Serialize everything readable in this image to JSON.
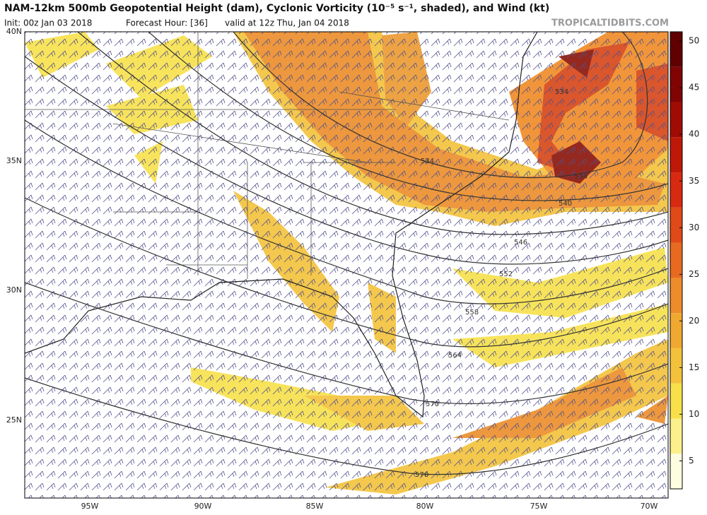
{
  "header": {
    "title": "NAM-12km 500mb Geopotential Height (dam), Cyclonic Vorticity (10⁻⁵ s⁻¹, shaded), and Wind (kt)",
    "init": "Init: 00z Jan 03 2018",
    "forecast_hour": "Forecast Hour: [36]",
    "valid": "valid at 12z Thu, Jan 04 2018",
    "brand": "TROPICALTIDBITS.COM"
  },
  "map": {
    "lat_labels": [
      "40N",
      "35N",
      "30N",
      "25N"
    ],
    "lon_labels": [
      "95W",
      "90W",
      "85W",
      "80W",
      "75W",
      "70W"
    ],
    "contour_labels": [
      534,
      534,
      534,
      540,
      546,
      552,
      558,
      564,
      570,
      576
    ]
  },
  "colorbar": {
    "lim": [
      2,
      51
    ],
    "ticks": [
      5,
      10,
      15,
      20,
      25,
      30,
      35,
      40,
      45,
      50
    ]
  }
}
